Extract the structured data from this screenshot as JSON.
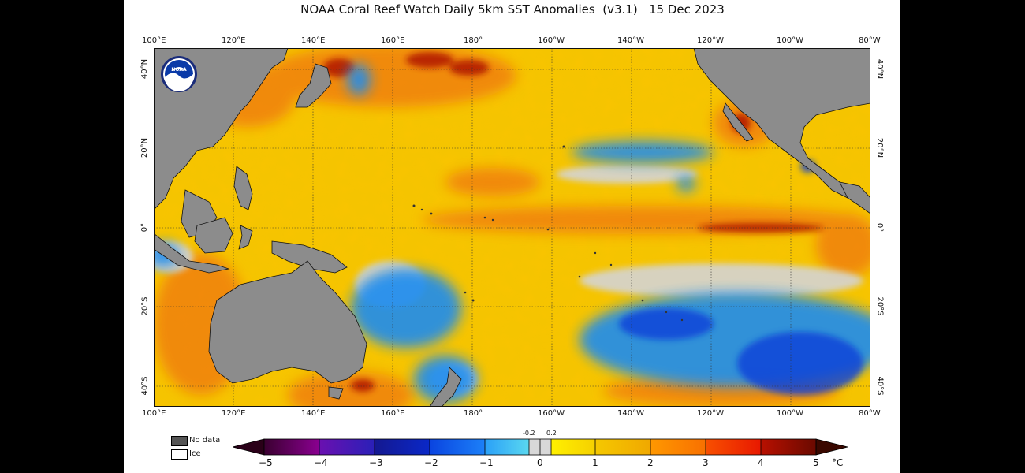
{
  "title": "NOAA Coral Reef Watch Daily 5km SST Anomalies  (v3.1)   15 Dec 2023",
  "logo_text": "NOAA",
  "lon_labels": [
    "100°E",
    "120°E",
    "140°E",
    "160°E",
    "180°",
    "160°W",
    "140°W",
    "120°W",
    "100°W",
    "80°W"
  ],
  "lat_labels_left": [
    "40°N",
    "20°N",
    "0°",
    "20°S",
    "40°S"
  ],
  "lat_labels_right": [
    "40°N",
    "20°N",
    "0°",
    "20°S",
    "40°S"
  ],
  "legend": {
    "no_data": "No data",
    "ice": "Ice",
    "no_data_color": "#555555",
    "ice_color": "#ffffff"
  },
  "colorbar": {
    "min": -5,
    "max": 5,
    "ticks": [
      "−5",
      "−4",
      "−3",
      "−2",
      "−1",
      "0",
      "1",
      "2",
      "3",
      "4",
      "5"
    ],
    "small_ticks": [
      "-0.2",
      "0.2"
    ],
    "unit": "°C",
    "colors": [
      "#2a0018",
      "#6a006a",
      "#3a1aa8",
      "#1030c0",
      "#1866e8",
      "#40b8f0",
      "#d8d8d8",
      "#ffe600",
      "#f0b400",
      "#ff8800",
      "#f04000",
      "#a00c00",
      "#3a0800"
    ]
  },
  "map": {
    "land_color": "#8c8c8c",
    "ocean_warm_color": "#f5c400",
    "anomaly_warm_color": "#f08010",
    "anomaly_hot_color": "#b01400",
    "anomaly_cool_color": "#1c8cf0",
    "anomaly_cold_color": "#1040d8",
    "neutral_color": "#d4d4d4"
  }
}
